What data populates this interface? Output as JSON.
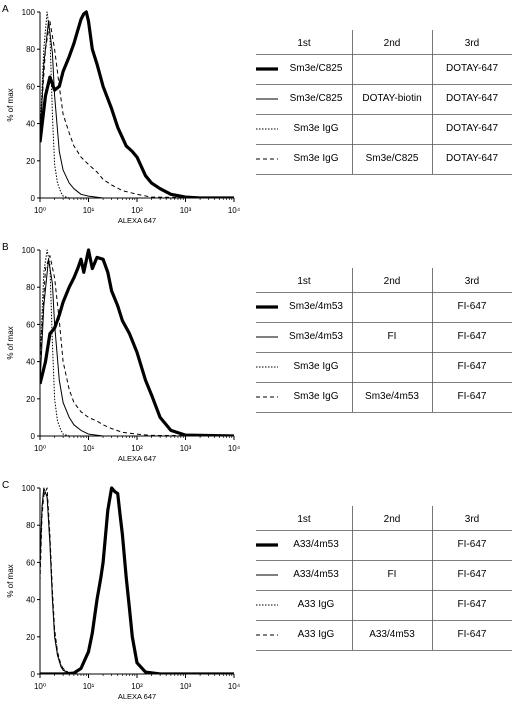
{
  "figure": {
    "panels": [
      {
        "letter": "A",
        "columns": [
          "1st",
          "2nd",
          "3rd"
        ],
        "rows": [
          {
            "style": "thick",
            "c1": "Sm3e/C825",
            "c2": "",
            "c3": "DOTAY-647"
          },
          {
            "style": "thin",
            "c1": "Sm3e/C825",
            "c2": "DOTAY-biotin",
            "c3": "DOTAY-647"
          },
          {
            "style": "dotted",
            "c1": "Sm3e IgG",
            "c2": "",
            "c3": "DOTAY-647"
          },
          {
            "style": "dashed",
            "c1": "Sm3e IgG",
            "c2": "Sm3e/C825",
            "c3": "DOTAY-647"
          }
        ]
      },
      {
        "letter": "B",
        "columns": [
          "1st",
          "2nd",
          "3rd"
        ],
        "rows": [
          {
            "style": "thick",
            "c1": "Sm3e/4m53",
            "c2": "",
            "c3": "FI-647"
          },
          {
            "style": "thin",
            "c1": "Sm3e/4m53",
            "c2": "FI",
            "c3": "FI-647"
          },
          {
            "style": "dotted",
            "c1": "Sm3e IgG",
            "c2": "",
            "c3": "FI-647"
          },
          {
            "style": "dashed",
            "c1": "Sm3e IgG",
            "c2": "Sm3e/4m53",
            "c3": "FI-647"
          }
        ]
      },
      {
        "letter": "C",
        "columns": [
          "1st",
          "2nd",
          "3rd"
        ],
        "rows": [
          {
            "style": "thick",
            "c1": "A33/4m53",
            "c2": "",
            "c3": "FI-647"
          },
          {
            "style": "thin",
            "c1": "A33/4m53",
            "c2": "FI",
            "c3": "FI-647"
          },
          {
            "style": "dotted",
            "c1": "A33 IgG",
            "c2": "",
            "c3": "FI-647"
          },
          {
            "style": "dashed",
            "c1": "A33 IgG",
            "c2": "A33/4m53",
            "c3": "FI-647"
          }
        ]
      }
    ]
  },
  "chart_data": [
    {
      "type": "line",
      "title": "",
      "xlabel": "ALEXA 647",
      "ylabel": "% of max",
      "xscale": "log",
      "xlim": [
        1,
        10000
      ],
      "ylim": [
        0,
        100
      ],
      "x_tick_labels": [
        "10⁰",
        "10¹",
        "10²",
        "10³",
        "10⁴"
      ],
      "y_tick_labels": [
        "0",
        "20",
        "40",
        "60",
        "80",
        "100"
      ],
      "grid": false,
      "series": [
        {
          "style": "thick",
          "x": [
            1,
            1.3,
            1.6,
            2,
            2.5,
            3,
            4,
            5,
            6,
            7,
            8,
            9,
            10,
            12,
            15,
            20,
            30,
            40,
            60,
            80,
            100,
            150,
            200,
            300,
            500,
            1000,
            2000,
            10000
          ],
          "y": [
            30,
            55,
            65,
            58,
            60,
            68,
            76,
            83,
            90,
            96,
            99,
            100,
            95,
            80,
            72,
            60,
            48,
            38,
            28,
            25,
            22,
            12,
            8,
            5,
            2,
            0.5,
            0,
            0
          ]
        },
        {
          "style": "thin",
          "x": [
            1,
            1.2,
            1.5,
            1.8,
            2,
            2.5,
            3,
            4,
            5,
            7,
            10,
            20,
            10000
          ],
          "y": [
            30,
            72,
            95,
            78,
            55,
            25,
            15,
            8,
            5,
            2,
            1,
            0,
            0
          ]
        },
        {
          "style": "dotted",
          "x": [
            1,
            1.2,
            1.4,
            1.6,
            1.8,
            2,
            2.3,
            2.7,
            3,
            4,
            10000
          ],
          "y": [
            35,
            80,
            100,
            88,
            45,
            18,
            8,
            3,
            1,
            0,
            0
          ]
        },
        {
          "style": "dashed",
          "x": [
            1,
            1.3,
            1.6,
            2,
            2.5,
            3,
            4,
            5,
            7,
            10,
            15,
            20,
            30,
            50,
            100,
            200,
            10000
          ],
          "y": [
            35,
            80,
            95,
            80,
            60,
            45,
            35,
            28,
            22,
            18,
            14,
            10,
            7,
            4,
            2,
            0.5,
            0
          ]
        }
      ]
    },
    {
      "type": "line",
      "title": "",
      "xlabel": "ALEXA 647",
      "ylabel": "% of max",
      "xscale": "log",
      "xlim": [
        1,
        10000
      ],
      "ylim": [
        0,
        100
      ],
      "x_tick_labels": [
        "10⁰",
        "10¹",
        "10²",
        "10³",
        "10⁴"
      ],
      "y_tick_labels": [
        "0",
        "20",
        "40",
        "60",
        "80",
        "100"
      ],
      "grid": false,
      "series": [
        {
          "style": "thick",
          "x": [
            1,
            1.3,
            1.6,
            2,
            2.5,
            3,
            4,
            5,
            6,
            7,
            8,
            10,
            12,
            15,
            20,
            25,
            30,
            40,
            50,
            70,
            100,
            150,
            200,
            300,
            500,
            1000,
            10000
          ],
          "y": [
            28,
            40,
            55,
            58,
            65,
            72,
            80,
            85,
            90,
            95,
            88,
            100,
            90,
            96,
            95,
            88,
            78,
            70,
            62,
            55,
            45,
            30,
            22,
            10,
            3,
            0.5,
            0
          ]
        },
        {
          "style": "thin",
          "x": [
            1,
            1.2,
            1.5,
            1.8,
            2,
            2.5,
            3,
            4,
            5,
            7,
            10,
            20,
            10000
          ],
          "y": [
            28,
            70,
            95,
            82,
            60,
            30,
            18,
            10,
            6,
            3,
            1,
            0,
            0
          ]
        },
        {
          "style": "dotted",
          "x": [
            1,
            1.2,
            1.4,
            1.6,
            1.8,
            2,
            2.3,
            2.7,
            3,
            4,
            10000
          ],
          "y": [
            40,
            88,
            100,
            92,
            50,
            20,
            8,
            3,
            1,
            0,
            0
          ]
        },
        {
          "style": "dashed",
          "x": [
            1,
            1.3,
            1.6,
            2,
            2.5,
            3,
            4,
            5,
            7,
            10,
            15,
            20,
            30,
            50,
            100,
            200,
            10000
          ],
          "y": [
            40,
            90,
            97,
            85,
            62,
            40,
            25,
            18,
            13,
            10,
            8,
            6,
            4,
            2,
            1,
            0.3,
            0
          ]
        }
      ]
    },
    {
      "type": "line",
      "title": "",
      "xlabel": "ALEXA 647",
      "ylabel": "% of max",
      "xscale": "log",
      "xlim": [
        1,
        10000
      ],
      "ylim": [
        0,
        100
      ],
      "x_tick_labels": [
        "10⁰",
        "10¹",
        "10²",
        "10³",
        "10⁴"
      ],
      "y_tick_labels": [
        "0",
        "20",
        "40",
        "60",
        "80",
        "100"
      ],
      "grid": false,
      "series": [
        {
          "style": "thick",
          "x": [
            1,
            3,
            5,
            7,
            10,
            12,
            15,
            18,
            20,
            25,
            30,
            35,
            40,
            45,
            50,
            60,
            70,
            80,
            100,
            150,
            300,
            10000
          ],
          "y": [
            0,
            0,
            0.5,
            3,
            12,
            22,
            40,
            52,
            60,
            88,
            100,
            98,
            97,
            85,
            75,
            52,
            35,
            20,
            6,
            1,
            0,
            0
          ]
        },
        {
          "style": "thin",
          "x": [
            1,
            1.1,
            1.2,
            1.4,
            1.6,
            1.8,
            2,
            2.3,
            2.7,
            3,
            4,
            5,
            10000
          ],
          "y": [
            60,
            90,
            100,
            95,
            70,
            40,
            20,
            10,
            4,
            2,
            0.5,
            0,
            0
          ]
        },
        {
          "style": "dotted",
          "x": [
            1,
            1.1,
            1.2,
            1.4,
            1.6,
            1.8,
            2,
            2.3,
            2.7,
            3,
            4,
            5,
            10000
          ],
          "y": [
            55,
            88,
            98,
            96,
            72,
            42,
            22,
            11,
            5,
            2.5,
            0.5,
            0,
            0
          ]
        },
        {
          "style": "dashed",
          "x": [
            1,
            1.1,
            1.2,
            1.4,
            1.6,
            1.8,
            2,
            2.3,
            2.7,
            3,
            4,
            5,
            10000
          ],
          "y": [
            50,
            85,
            96,
            100,
            75,
            45,
            24,
            12,
            5,
            3,
            0.5,
            0,
            0
          ]
        }
      ]
    }
  ]
}
